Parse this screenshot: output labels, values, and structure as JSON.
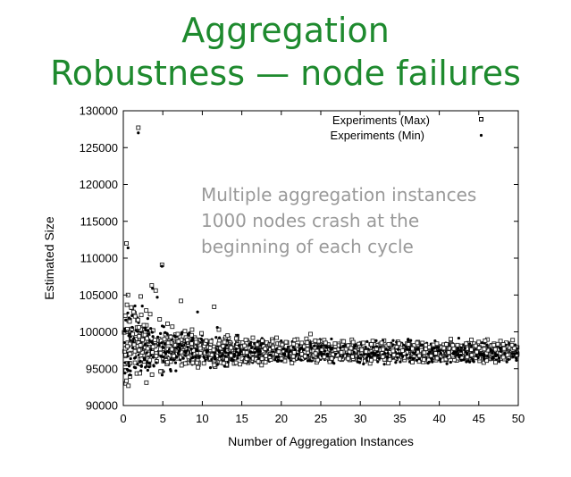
{
  "title": {
    "line1": "Aggregation",
    "line2": "Robustness — node failures"
  },
  "annotation": {
    "lines": [
      "Multiple aggregation instances",
      "1000 nodes crash at the",
      "beginning of each cycle"
    ]
  },
  "chart_data": {
    "type": "scatter",
    "xlabel": "Number of Aggregation Instances",
    "ylabel": "Estimated Size",
    "xlim": [
      0,
      50
    ],
    "ylim": [
      90000,
      130000
    ],
    "xticks": [
      0,
      5,
      10,
      15,
      20,
      25,
      30,
      35,
      40,
      45,
      50
    ],
    "yticks": [
      90000,
      95000,
      100000,
      105000,
      110000,
      115000,
      120000,
      125000,
      130000
    ],
    "xtick_labels": [
      "0",
      "5",
      "10",
      "15",
      "20",
      "25",
      "30",
      "35",
      "40",
      "45",
      "50"
    ],
    "ytick_labels": [
      "90000",
      "95000",
      "100000",
      "105000",
      "110000",
      "115000",
      "120000",
      "125000",
      "130000"
    ],
    "legend_position": "top-right",
    "grid": false,
    "series": [
      {
        "name": "Experiments (Max)",
        "marker": "open-square",
        "points": [
          [
            1.9,
            127700
          ],
          [
            0.4,
            112000
          ],
          [
            0.6,
            105000
          ],
          [
            4.9,
            109100
          ],
          [
            3.6,
            106300
          ],
          [
            4.1,
            105600
          ],
          [
            2.2,
            104800
          ],
          [
            1.0,
            103300
          ],
          [
            2.9,
            102900
          ],
          [
            3.4,
            102400
          ],
          [
            4.6,
            101700
          ],
          [
            1.5,
            102100
          ],
          [
            0.8,
            101400
          ],
          [
            2.6,
            100900
          ],
          [
            5.6,
            101100
          ],
          [
            6.2,
            100700
          ],
          [
            7.3,
            104200
          ],
          [
            7.8,
            100100
          ],
          [
            6.9,
            99700
          ],
          [
            8.7,
            100300
          ],
          [
            9.9,
            99800
          ],
          [
            11.5,
            103400
          ],
          [
            12.1,
            100300
          ],
          [
            13.2,
            99500
          ],
          [
            14.3,
            99100
          ],
          [
            15.5,
            98900
          ],
          [
            16.4,
            99200
          ],
          [
            17.6,
            98800
          ],
          [
            18.9,
            98700
          ],
          [
            19.4,
            99200
          ],
          [
            20.6,
            98600
          ],
          [
            21.7,
            98900
          ],
          [
            22.6,
            98500
          ],
          [
            23.7,
            99700
          ],
          [
            24.3,
            98800
          ],
          [
            25.6,
            98500
          ],
          [
            26.8,
            98400
          ],
          [
            27.9,
            98700
          ],
          [
            29.1,
            98600
          ],
          [
            30.4,
            98500
          ],
          [
            31.4,
            98300
          ],
          [
            32.7,
            98500
          ],
          [
            33.6,
            98300
          ],
          [
            34.9,
            98400
          ],
          [
            36.1,
            98300
          ],
          [
            37.2,
            98500
          ],
          [
            38.3,
            98200
          ],
          [
            39.7,
            98400
          ],
          [
            40.9,
            98300
          ],
          [
            42.3,
            98200
          ],
          [
            43.4,
            98400
          ],
          [
            44.6,
            98100
          ],
          [
            45.8,
            98800
          ],
          [
            46.9,
            98200
          ],
          [
            48.1,
            98300
          ],
          [
            49.2,
            98200
          ],
          [
            1.2,
            99700
          ],
          [
            2.0,
            99400
          ],
          [
            3.0,
            99100
          ],
          [
            4.0,
            98900
          ],
          [
            5.2,
            99000
          ],
          [
            6.0,
            99300
          ],
          [
            7.0,
            98700
          ],
          [
            8.1,
            98900
          ],
          [
            9.2,
            98600
          ],
          [
            10.5,
            98800
          ],
          [
            11.1,
            98700
          ],
          [
            12.8,
            98600
          ]
        ]
      },
      {
        "name": "Experiments (Min)",
        "marker": "dot",
        "points": [
          [
            1.9,
            127000
          ],
          [
            0.6,
            111400
          ],
          [
            4.9,
            108900
          ],
          [
            3.7,
            105900
          ],
          [
            4.3,
            104700
          ],
          [
            2.4,
            103500
          ],
          [
            1.1,
            102200
          ],
          [
            3.1,
            101800
          ],
          [
            0.3,
            101600
          ],
          [
            2.8,
            100500
          ],
          [
            5.3,
            99900
          ],
          [
            6.6,
            99300
          ],
          [
            0.2,
            94400
          ],
          [
            0.5,
            94900
          ],
          [
            0.9,
            94700
          ],
          [
            1.4,
            95200
          ],
          [
            1.8,
            95600
          ],
          [
            2.3,
            95300
          ],
          [
            3.3,
            95700
          ],
          [
            4.2,
            95800
          ],
          [
            5.1,
            96000
          ],
          [
            6.4,
            96200
          ],
          [
            7.6,
            96400
          ],
          [
            8.8,
            96500
          ],
          [
            10.2,
            96600
          ],
          [
            11.6,
            96700
          ],
          [
            12.9,
            96700
          ],
          [
            14.1,
            96800
          ],
          [
            15.8,
            96800
          ],
          [
            17.3,
            96900
          ],
          [
            18.6,
            96900
          ],
          [
            20.3,
            96900
          ],
          [
            22.0,
            97000
          ],
          [
            23.4,
            96800
          ],
          [
            25.1,
            97000
          ],
          [
            26.9,
            97000
          ],
          [
            28.4,
            97000
          ],
          [
            30.1,
            96900
          ],
          [
            31.9,
            97000
          ],
          [
            33.5,
            97100
          ],
          [
            35.2,
            97000
          ],
          [
            36.8,
            97100
          ],
          [
            38.6,
            97000
          ],
          [
            40.2,
            97100
          ],
          [
            41.8,
            97000
          ],
          [
            43.5,
            97100
          ],
          [
            45.1,
            97000
          ],
          [
            46.7,
            97100
          ],
          [
            48.3,
            97000
          ],
          [
            49.8,
            97100
          ],
          [
            9.4,
            102700
          ],
          [
            11.9,
            100600
          ],
          [
            8.2,
            99700
          ],
          [
            7.1,
            98300
          ]
        ]
      }
    ]
  },
  "band": {
    "description_free_note": "",
    "dense_points": 2400
  }
}
